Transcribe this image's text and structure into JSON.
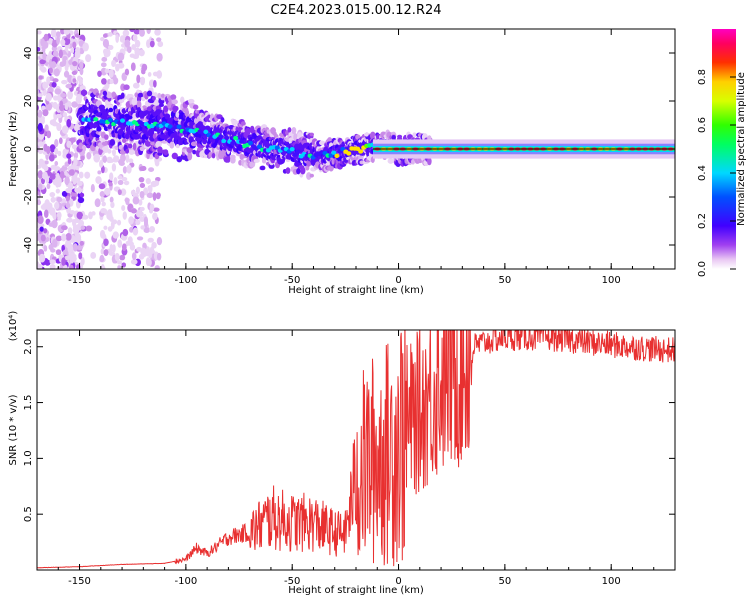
{
  "title": "C2E4.2023.015.00.12.R24",
  "chart_data": [
    {
      "type": "heatmap",
      "xlabel": "Height of straight line (km)",
      "ylabel": "Frequency (Hz)",
      "xlim": [
        -170,
        130
      ],
      "ylim": [
        -50,
        50
      ],
      "xticks": [
        -150,
        -100,
        -50,
        0,
        50,
        100
      ],
      "yticks": [
        -40,
        -20,
        0,
        20,
        40
      ],
      "xtick_labels": [
        "-150",
        "-100",
        "-50",
        "0",
        "50",
        "100"
      ],
      "ytick_labels": [
        "-40",
        "-20",
        "0",
        "20",
        "40"
      ],
      "grid": false,
      "colorbar": {
        "label": "Normalized spectral amplitude",
        "range": [
          0,
          1
        ],
        "ticks": [
          0.0,
          0.2,
          0.4,
          0.6,
          0.8
        ],
        "tick_labels": [
          "0.0",
          "0.2",
          "0.4",
          "0.6",
          "0.8"
        ],
        "colormap": "rainbow (magenta-blue-cyan-green-yellow-red-pink)"
      },
      "ridge": {
        "x": [
          -145,
          -130,
          -115,
          -100,
          -90,
          -80,
          -70,
          -60,
          -50,
          -40,
          -30,
          -20,
          -10,
          0,
          10,
          130
        ],
        "freq": [
          12,
          11,
          10,
          8,
          6,
          4,
          2,
          0,
          -1,
          -3,
          -2,
          0,
          1,
          0,
          0,
          0
        ]
      }
    },
    {
      "type": "line",
      "xlabel": "Height of straight line (km)",
      "ylabel": "SNR (10 * v/v)",
      "yscale_label": "(x10⁴)",
      "xlim": [
        -170,
        130
      ],
      "ylim": [
        0,
        2.15
      ],
      "xticks": [
        -150,
        -100,
        -50,
        0,
        50,
        100
      ],
      "yticks": [
        0.5,
        1.0,
        1.5,
        2.0
      ],
      "xtick_labels": [
        "-150",
        "-100",
        "-50",
        "0",
        "50",
        "100"
      ],
      "ytick_labels": [
        "0.5",
        "1.0",
        "1.5",
        "2.0"
      ],
      "grid": false,
      "color": "#e83030",
      "series": [
        {
          "x": [
            -170,
            -150,
            -130,
            -110,
            -100,
            -95,
            -90,
            -80,
            -70,
            -60,
            -50,
            -40,
            -30,
            -25,
            -20,
            -15,
            -10,
            -5,
            0,
            10,
            20,
            30,
            40,
            50,
            60,
            70,
            80,
            90,
            100,
            110,
            120,
            130
          ],
          "values": [
            0.02,
            0.03,
            0.05,
            0.06,
            0.1,
            0.2,
            0.15,
            0.3,
            0.35,
            0.5,
            0.45,
            0.45,
            0.35,
            0.35,
            0.9,
            1.05,
            1.1,
            1.15,
            1.3,
            1.5,
            1.8,
            1.98,
            2.05,
            2.1,
            2.1,
            2.1,
            2.08,
            2.05,
            2.03,
            2.01,
            1.99,
            1.98
          ]
        }
      ]
    }
  ]
}
